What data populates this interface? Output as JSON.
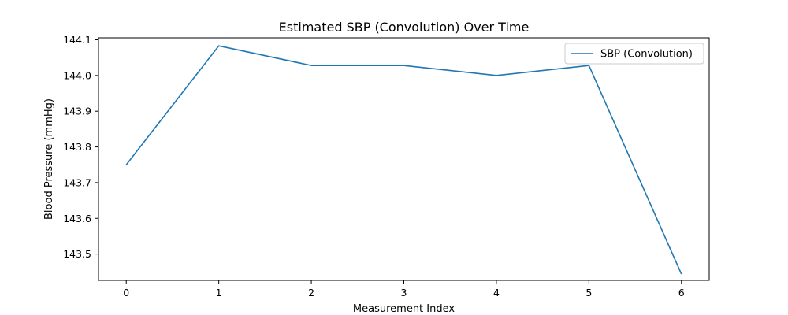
{
  "chart_data": {
    "type": "line",
    "title": "Estimated SBP (Convolution) Over Time",
    "xlabel": "Measurement Index",
    "ylabel": "Blood Pressure (mmHg)",
    "x": [
      0,
      1,
      2,
      3,
      4,
      5,
      6
    ],
    "series": [
      {
        "name": "SBP (Convolution)",
        "values": [
          143.75,
          144.083,
          144.028,
          144.028,
          144.0,
          144.028,
          143.444
        ],
        "color": "#1f77b4"
      }
    ],
    "xticks": [
      "0",
      "1",
      "2",
      "3",
      "4",
      "5",
      "6"
    ],
    "yticks": [
      "143.5",
      "143.6",
      "143.7",
      "143.8",
      "143.9",
      "144.0",
      "144.1"
    ],
    "xlim": [
      -0.3,
      6.3
    ],
    "ylim": [
      143.4264,
      144.1055
    ],
    "grid": false,
    "legend_position": "upper-right"
  }
}
